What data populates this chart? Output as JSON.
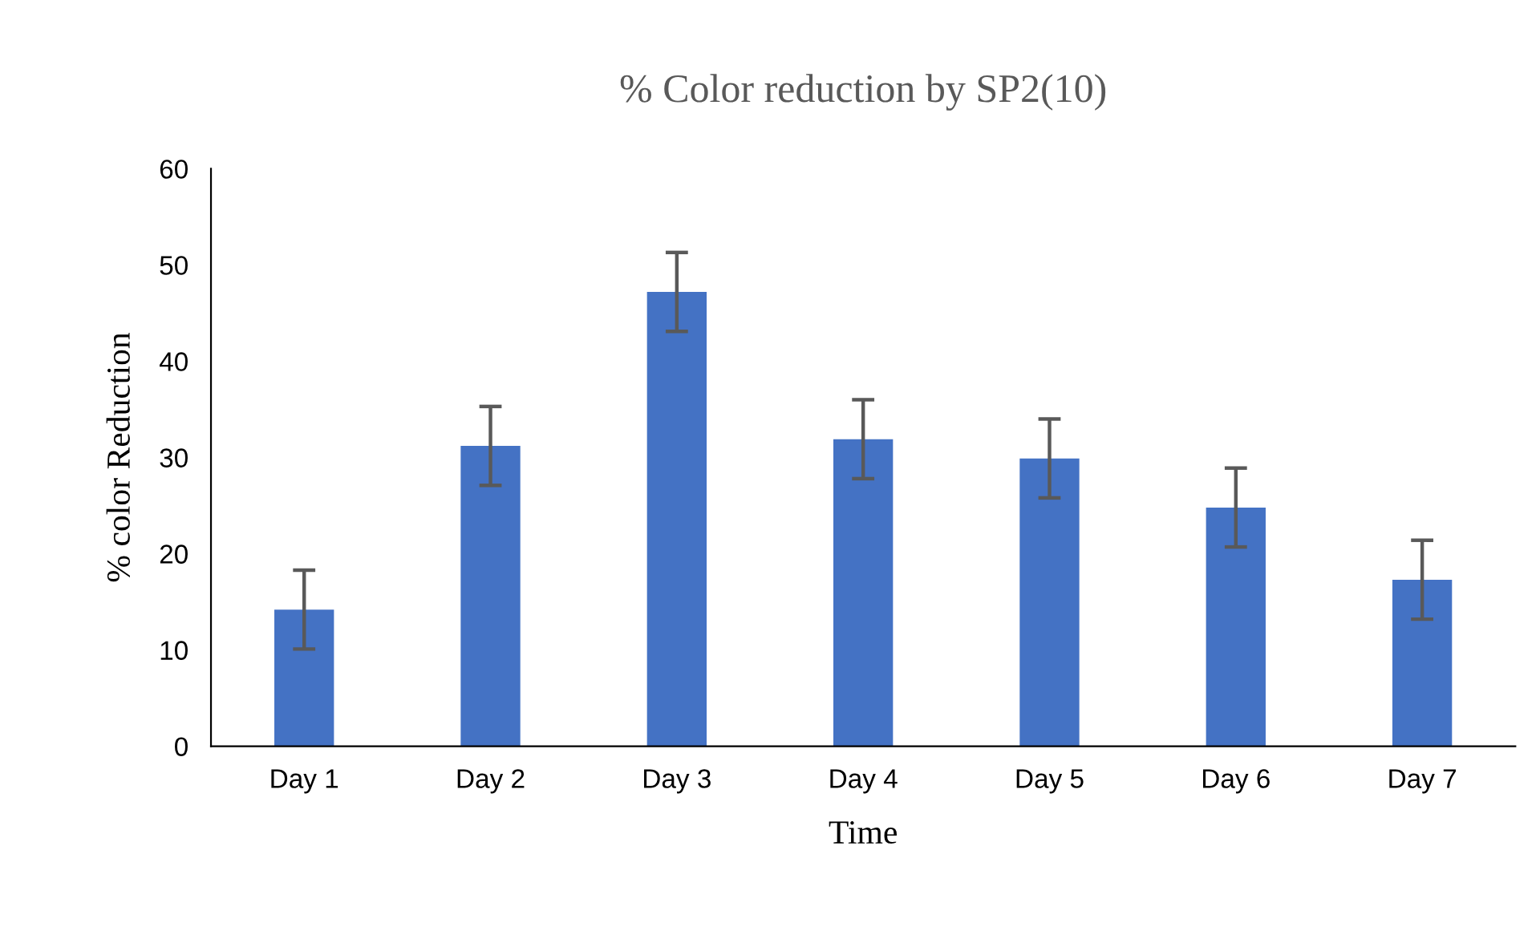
{
  "chart_data": {
    "type": "bar",
    "title": "% Color reduction by SP2(10)",
    "xlabel": "Time",
    "ylabel": "% color Reduction",
    "categories": [
      "Day 1",
      "Day 2",
      "Day 3",
      "Day 4",
      "Day 5",
      "Day 6",
      "Day 7"
    ],
    "values": [
      14.2,
      31.2,
      47.2,
      31.9,
      29.9,
      24.8,
      17.3
    ],
    "errors": [
      4.1,
      4.1,
      4.1,
      4.1,
      4.1,
      4.1,
      4.1
    ],
    "color": "#4472c4",
    "ylim": [
      0,
      60
    ],
    "yticks": [
      0,
      10,
      20,
      30,
      40,
      50,
      60
    ],
    "grid": false,
    "legend": false
  }
}
